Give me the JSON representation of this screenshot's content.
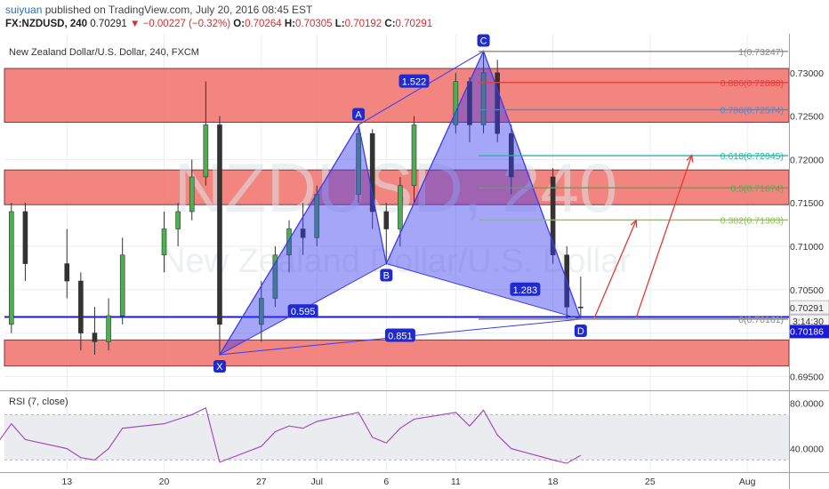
{
  "header": {
    "author": "suiyuan",
    "published": "published on TradingView.com, July 20, 2016 08:45 EST",
    "symbol": "FX:NZDUSD, 240",
    "last": "0.70291",
    "change": "−0.00227 (−0.32%)",
    "o_label": "O:",
    "o": "0.70264",
    "h_label": "H:",
    "h": "0.70305",
    "l_label": "L:",
    "l": "0.70192",
    "c_label": "C:",
    "c": "0.70291"
  },
  "chart_data": {
    "type": "candlestick",
    "title": "New Zealand Dollar/U.S. Dollar, 240, FXCM",
    "watermark": "NZDUSD, 240",
    "watermark_sub": "New Zealand Dollar/U.S. Dollar",
    "ylim": [
      0.6935,
      0.7345
    ],
    "y_ticks": [
      "0.73000",
      "0.72500",
      "0.72000",
      "0.71500",
      "0.71000",
      "0.70500",
      "0.70000",
      "0.69500"
    ],
    "x_ticks": [
      {
        "label": "13",
        "date": "2016-06-13"
      },
      {
        "label": "20",
        "date": "2016-06-20"
      },
      {
        "label": "27",
        "date": "2016-06-27"
      },
      {
        "label": "Jul",
        "date": "2016-07-01"
      },
      {
        "label": "6",
        "date": "2016-07-06"
      },
      {
        "label": "11",
        "date": "2016-07-11"
      },
      {
        "label": "18",
        "date": "2016-07-18"
      },
      {
        "label": "25",
        "date": "2016-07-25"
      },
      {
        "label": "Aug",
        "date": "2016-08-01"
      }
    ],
    "price_labels": {
      "last": "0.70291",
      "countdown": "3:14:30",
      "line": "0.70186"
    },
    "zones": [
      {
        "from": 0.7243,
        "to": 0.7305,
        "color": "#f07068"
      },
      {
        "from": 0.7148,
        "to": 0.7188,
        "color": "#f07068"
      },
      {
        "from": 0.6962,
        "to": 0.6992,
        "color": "#f07068"
      }
    ],
    "horizontal_line": {
      "price": 0.70186,
      "color": "#1a1adc"
    },
    "pattern": {
      "points": [
        {
          "label": "X",
          "date": "2016-06-24",
          "price": 0.6975
        },
        {
          "label": "A",
          "date": "2016-07-04",
          "price": 0.724
        },
        {
          "label": "B",
          "date": "2016-07-06",
          "price": 0.708
        },
        {
          "label": "C",
          "date": "2016-07-13",
          "price": 0.7325
        },
        {
          "label": "D",
          "date": "2016-07-20",
          "price": 0.7016
        }
      ],
      "ratios": [
        {
          "label": "1.522",
          "date": "2016-07-08",
          "price": 0.729
        },
        {
          "label": "1.283",
          "date": "2016-07-16",
          "price": 0.705
        },
        {
          "label": "0.595",
          "date": "2016-06-30",
          "price": 0.7025
        },
        {
          "label": "0.851",
          "date": "2016-07-07",
          "price": 0.6997
        }
      ],
      "color": "#3a3af0"
    },
    "fib_levels": [
      {
        "label": "1(0.73247)",
        "price": 0.73247,
        "color": "#888888"
      },
      {
        "label": "0.886(0.72888)",
        "price": 0.72888,
        "color": "#e04040"
      },
      {
        "label": "0.786(0.72574)",
        "price": 0.72574,
        "color": "#3b8fd6"
      },
      {
        "label": "0.618(0.72045)",
        "price": 0.72045,
        "color": "#22b8a0"
      },
      {
        "label": "0.5(0.71674)",
        "price": 0.71674,
        "color": "#4caf50"
      },
      {
        "label": "0.382(0.71303)",
        "price": 0.71303,
        "color": "#8bc34a"
      },
      {
        "label": "0(0.70161)",
        "price": 0.70161,
        "color": "#888888"
      }
    ],
    "projections": [
      {
        "from": {
          "date": "2016-07-21",
          "price": 0.7018
        },
        "to": {
          "date": "2016-07-24",
          "price": 0.713
        }
      },
      {
        "from": {
          "date": "2016-07-24",
          "price": 0.7018
        },
        "to": {
          "date": "2016-07-28",
          "price": 0.7205
        }
      }
    ],
    "candles": [
      {
        "date": "2016-06-08",
        "o": 0.7,
        "h": 0.702,
        "l": 0.695,
        "c": 0.701
      },
      {
        "date": "2016-06-09",
        "o": 0.701,
        "h": 0.715,
        "l": 0.7,
        "c": 0.714
      },
      {
        "date": "2016-06-10",
        "o": 0.714,
        "h": 0.715,
        "l": 0.706,
        "c": 0.708
      },
      {
        "date": "2016-06-13",
        "o": 0.708,
        "h": 0.712,
        "l": 0.704,
        "c": 0.706
      },
      {
        "date": "2016-06-14",
        "o": 0.706,
        "h": 0.707,
        "l": 0.698,
        "c": 0.7
      },
      {
        "date": "2016-06-15",
        "o": 0.7,
        "h": 0.703,
        "l": 0.6975,
        "c": 0.699
      },
      {
        "date": "2016-06-16",
        "o": 0.699,
        "h": 0.704,
        "l": 0.698,
        "c": 0.702
      },
      {
        "date": "2016-06-17",
        "o": 0.702,
        "h": 0.711,
        "l": 0.701,
        "c": 0.709
      },
      {
        "date": "2016-06-20",
        "o": 0.709,
        "h": 0.714,
        "l": 0.707,
        "c": 0.712
      },
      {
        "date": "2016-06-21",
        "o": 0.712,
        "h": 0.715,
        "l": 0.71,
        "c": 0.714
      },
      {
        "date": "2016-06-22",
        "o": 0.714,
        "h": 0.72,
        "l": 0.713,
        "c": 0.718
      },
      {
        "date": "2016-06-23",
        "o": 0.718,
        "h": 0.729,
        "l": 0.717,
        "c": 0.724
      },
      {
        "date": "2016-06-24",
        "o": 0.724,
        "h": 0.725,
        "l": 0.6975,
        "c": 0.701
      },
      {
        "date": "2016-06-27",
        "o": 0.701,
        "h": 0.706,
        "l": 0.699,
        "c": 0.704
      },
      {
        "date": "2016-06-28",
        "o": 0.704,
        "h": 0.71,
        "l": 0.703,
        "c": 0.709
      },
      {
        "date": "2016-06-29",
        "o": 0.709,
        "h": 0.713,
        "l": 0.707,
        "c": 0.712
      },
      {
        "date": "2016-06-30",
        "o": 0.712,
        "h": 0.715,
        "l": 0.709,
        "c": 0.711
      },
      {
        "date": "2016-07-01",
        "o": 0.711,
        "h": 0.717,
        "l": 0.71,
        "c": 0.716
      },
      {
        "date": "2016-07-04",
        "o": 0.716,
        "h": 0.724,
        "l": 0.715,
        "c": 0.723
      },
      {
        "date": "2016-07-05",
        "o": 0.723,
        "h": 0.7235,
        "l": 0.712,
        "c": 0.714
      },
      {
        "date": "2016-07-06",
        "o": 0.714,
        "h": 0.715,
        "l": 0.708,
        "c": 0.712
      },
      {
        "date": "2016-07-07",
        "o": 0.712,
        "h": 0.718,
        "l": 0.71,
        "c": 0.717
      },
      {
        "date": "2016-07-08",
        "o": 0.717,
        "h": 0.725,
        "l": 0.715,
        "c": 0.724
      },
      {
        "date": "2016-07-11",
        "o": 0.724,
        "h": 0.73,
        "l": 0.723,
        "c": 0.729
      },
      {
        "date": "2016-07-12",
        "o": 0.729,
        "h": 0.7295,
        "l": 0.722,
        "c": 0.724
      },
      {
        "date": "2016-07-13",
        "o": 0.724,
        "h": 0.7325,
        "l": 0.723,
        "c": 0.73
      },
      {
        "date": "2016-07-14",
        "o": 0.73,
        "h": 0.7315,
        "l": 0.722,
        "c": 0.723
      },
      {
        "date": "2016-07-15",
        "o": 0.723,
        "h": 0.724,
        "l": 0.716,
        "c": 0.718
      },
      {
        "date": "2016-07-18",
        "o": 0.718,
        "h": 0.719,
        "l": 0.708,
        "c": 0.709
      },
      {
        "date": "2016-07-19",
        "o": 0.709,
        "h": 0.71,
        "l": 0.7016,
        "c": 0.703
      },
      {
        "date": "2016-07-20",
        "o": 0.703,
        "h": 0.7065,
        "l": 0.7019,
        "c": 0.7029
      }
    ]
  },
  "rsi": {
    "label": "RSI (7, close)",
    "ylim": [
      20,
      90
    ],
    "ticks": [
      "80.0000",
      "40.0000"
    ],
    "band": [
      30,
      70
    ],
    "color": "#a040c0",
    "values": [
      45,
      62,
      48,
      40,
      32,
      30,
      40,
      58,
      62,
      66,
      70,
      76,
      28,
      42,
      55,
      60,
      58,
      64,
      72,
      50,
      45,
      58,
      66,
      72,
      60,
      74,
      52,
      40,
      30,
      27,
      34
    ]
  }
}
